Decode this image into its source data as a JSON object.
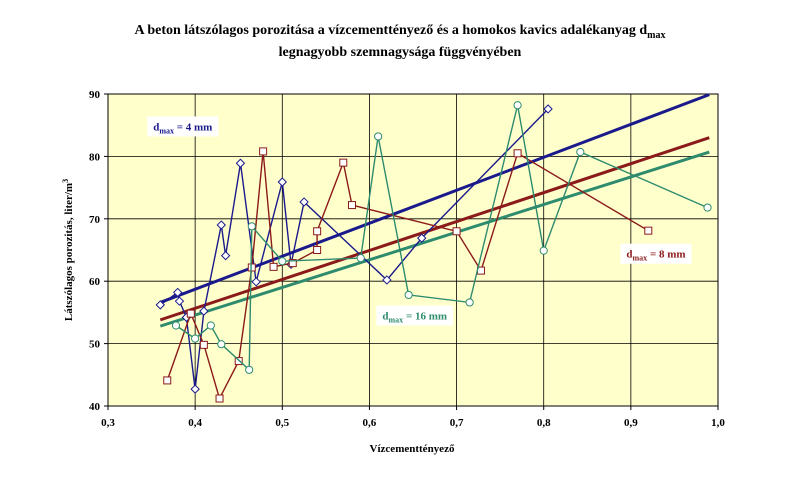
{
  "chart_data": {
    "type": "line",
    "title_line1": "A beton látszólagos porozitása a vízcementtényező és a homokos kavics adalékanyag d",
    "title_line1_sub": "max",
    "title_line2": "legnagyobb szemnagysága függvényében",
    "xlabel": "Vízcementtényező",
    "ylabel": "Látszólagos porozitás, liter/m",
    "ylabel_sup": "3",
    "xlim": [
      0.3,
      1.0
    ],
    "ylim": [
      40,
      90
    ],
    "x_ticks": [
      0.3,
      0.4,
      0.5,
      0.6,
      0.7,
      0.8,
      0.9,
      1.0
    ],
    "x_tick_labels": [
      "0,3",
      "0,4",
      "0,5",
      "0,6",
      "0,7",
      "0,8",
      "0,9",
      "1,0"
    ],
    "y_ticks": [
      40,
      50,
      60,
      70,
      80,
      90
    ],
    "y_tick_labels": [
      "40",
      "50",
      "60",
      "70",
      "80",
      "90"
    ],
    "grid": true,
    "plot_background": "#ffffcc",
    "series": [
      {
        "marker": "diamond",
        "color": "#1a1a8c",
        "points": [
          [
            0.36,
            56.2
          ],
          [
            0.38,
            58.2
          ],
          [
            0.382,
            56.8
          ],
          [
            0.39,
            54.2
          ],
          [
            0.4,
            42.7
          ],
          [
            0.41,
            55.2
          ],
          [
            0.43,
            69
          ],
          [
            0.435,
            64.1
          ],
          [
            0.452,
            78.9
          ],
          [
            0.47,
            59.9
          ],
          [
            0.5,
            75.9
          ],
          [
            0.51,
            62.7
          ],
          [
            0.525,
            72.7
          ],
          [
            0.62,
            60.2
          ],
          [
            0.66,
            66.9
          ],
          [
            0.805,
            87.6
          ]
        ],
        "trend": [
          [
            0.36,
            56.6
          ],
          [
            0.99,
            89.9
          ]
        ],
        "trend_color": "#1a1a8c"
      },
      {
        "marker": "square",
        "color": "#8b1a1a",
        "points": [
          [
            0.368,
            44.1
          ],
          [
            0.395,
            54.8
          ],
          [
            0.41,
            49.8
          ],
          [
            0.428,
            41.2
          ],
          [
            0.45,
            47.2
          ],
          [
            0.465,
            62.2
          ],
          [
            0.478,
            80.8
          ],
          [
            0.49,
            62.3
          ],
          [
            0.512,
            62.9
          ],
          [
            0.54,
            65
          ],
          [
            0.54,
            68
          ],
          [
            0.57,
            79
          ],
          [
            0.58,
            72.2
          ],
          [
            0.7,
            68
          ],
          [
            0.728,
            61.7
          ],
          [
            0.77,
            80.5
          ],
          [
            0.92,
            68.1
          ]
        ],
        "trend": [
          [
            0.36,
            53.8
          ],
          [
            0.99,
            83
          ]
        ],
        "trend_color": "#8b1a1a"
      },
      {
        "marker": "circle",
        "color": "#2e8b6e",
        "points": [
          [
            0.378,
            52.9
          ],
          [
            0.4,
            50.8
          ],
          [
            0.418,
            52.9
          ],
          [
            0.43,
            49.9
          ],
          [
            0.462,
            45.8
          ],
          [
            0.465,
            68.8
          ],
          [
            0.5,
            63.2
          ],
          [
            0.59,
            63.7
          ],
          [
            0.61,
            83.2
          ],
          [
            0.645,
            57.8
          ],
          [
            0.715,
            56.6
          ],
          [
            0.77,
            88.2
          ],
          [
            0.8,
            64.9
          ],
          [
            0.842,
            80.7
          ],
          [
            0.988,
            71.8
          ]
        ],
        "trend": [
          [
            0.36,
            52.8
          ],
          [
            0.99,
            80.7
          ]
        ],
        "trend_color": "#2e8b6e"
      }
    ],
    "annotations": [
      {
        "text": "d",
        "sub": "max",
        "suffix": " = 4 mm",
        "color": "#1a1a8c",
        "x": 0.345,
        "y": 84.8
      },
      {
        "text": "d",
        "sub": "max",
        "suffix": " = 8 mm",
        "color": "#8b1a1a",
        "x": 0.888,
        "y": 64.4
      },
      {
        "text": "d",
        "sub": "max",
        "suffix": " = 16 mm",
        "color": "#2e8b6e",
        "x": 0.608,
        "y": 54.5
      }
    ]
  }
}
